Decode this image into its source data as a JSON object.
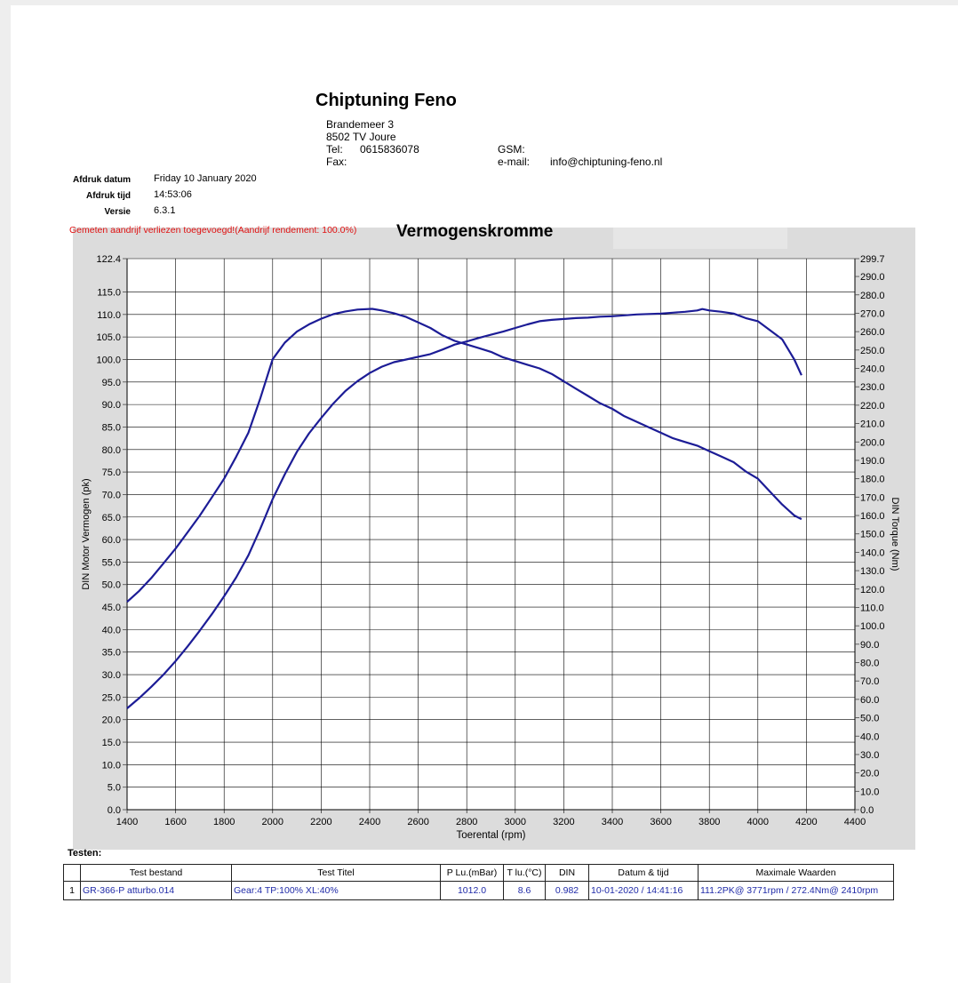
{
  "header": {
    "company": "Chiptuning Feno",
    "address_line1": "Brandemeer 3",
    "address_line2": "8502 TV Joure",
    "tel_label": "Tel:",
    "tel_value": "0615836078",
    "fax_label": "Fax:",
    "gsm_label": "GSM:",
    "email_label": "e-mail:",
    "email_value": "info@chiptuning-feno.nl"
  },
  "meta": {
    "date_label": "Afdruk datum",
    "date_value": "Friday 10 January 2020",
    "time_label": "Afdruk tijd",
    "time_value": "14:53:06",
    "version_label": "Versie",
    "version_value": "6.3.1"
  },
  "warning": "Gemeten aandrijf verliezen toegevoegd!(Aandrijf rendement: 100.0%)",
  "colors": {
    "curve": "#1c1c96",
    "plot_bg": "#ffffff",
    "frame_bg": "#dcdcdc",
    "grid": "#000000",
    "warning": "#e01010"
  },
  "chart_data": {
    "type": "line",
    "title": "Vermogenskromme",
    "xlabel": "Toerental (rpm)",
    "ylabel_left": "DIN Motor Vermogen (pk)",
    "ylabel_right": "DIN Torque (Nm)",
    "xlim": [
      1400,
      4400
    ],
    "ylim_left": [
      0,
      122.4
    ],
    "ylim_right": [
      0,
      299.7
    ],
    "x_ticks": [
      "1400",
      "1600",
      "1800",
      "2000",
      "2200",
      "2400",
      "2600",
      "2800",
      "3000",
      "3200",
      "3400",
      "3600",
      "3800",
      "4000",
      "4200",
      "4400"
    ],
    "y_left_ticks": [
      "0.0",
      "5.0",
      "10.0",
      "15.0",
      "20.0",
      "25.0",
      "30.0",
      "35.0",
      "40.0",
      "45.0",
      "50.0",
      "55.0",
      "60.0",
      "65.0",
      "70.0",
      "75.0",
      "80.0",
      "85.0",
      "90.0",
      "95.0",
      "100.0",
      "105.0",
      "110.0",
      "115.0",
      "122.4"
    ],
    "y_right_ticks": [
      "0.0",
      "10.0",
      "20.0",
      "30.0",
      "40.0",
      "50.0",
      "60.0",
      "70.0",
      "80.0",
      "90.0",
      "100.0",
      "110.0",
      "120.0",
      "130.0",
      "140.0",
      "150.0",
      "160.0",
      "170.0",
      "180.0",
      "190.0",
      "200.0",
      "210.0",
      "220.0",
      "230.0",
      "240.0",
      "250.0",
      "260.0",
      "270.0",
      "280.0",
      "290.0",
      "299.7"
    ],
    "grid": true,
    "series": [
      {
        "name": "Vermogen (pk)",
        "axis": "left",
        "x": [
          1400,
          1450,
          1500,
          1550,
          1600,
          1650,
          1700,
          1750,
          1800,
          1850,
          1900,
          1950,
          2000,
          2050,
          2100,
          2150,
          2200,
          2250,
          2300,
          2350,
          2400,
          2450,
          2500,
          2550,
          2600,
          2650,
          2700,
          2750,
          2800,
          2850,
          2900,
          2950,
          3000,
          3050,
          3100,
          3150,
          3200,
          3250,
          3300,
          3350,
          3400,
          3450,
          3500,
          3550,
          3600,
          3650,
          3700,
          3750,
          3771,
          3800,
          3850,
          3900,
          3950,
          4000,
          4050,
          4100,
          4150,
          4180
        ],
        "y": [
          22.5,
          24.8,
          27.3,
          30,
          33,
          36.3,
          39.8,
          43.5,
          47.4,
          51.6,
          56.5,
          62.5,
          69,
          74.5,
          79.5,
          83.6,
          87,
          90.2,
          93,
          95.2,
          97,
          98.4,
          99.4,
          100,
          100.6,
          101.2,
          102.2,
          103.3,
          104,
          104.8,
          105.5,
          106.2,
          107,
          107.8,
          108.5,
          108.8,
          109,
          109.2,
          109.3,
          109.5,
          109.6,
          109.8,
          110,
          110.1,
          110.2,
          110.4,
          110.6,
          110.9,
          111.2,
          110.9,
          110.6,
          110.2,
          109.2,
          108.5,
          106.5,
          104.5,
          100,
          96.5
        ]
      },
      {
        "name": "Torque (Nm)",
        "axis": "right",
        "x": [
          1400,
          1450,
          1500,
          1550,
          1600,
          1650,
          1700,
          1750,
          1800,
          1850,
          1900,
          1950,
          2000,
          2050,
          2100,
          2150,
          2200,
          2250,
          2300,
          2350,
          2410,
          2450,
          2500,
          2550,
          2600,
          2650,
          2700,
          2750,
          2800,
          2850,
          2900,
          2950,
          3000,
          3050,
          3100,
          3150,
          3200,
          3250,
          3300,
          3350,
          3400,
          3450,
          3500,
          3550,
          3600,
          3650,
          3700,
          3750,
          3800,
          3850,
          3900,
          3950,
          4000,
          4050,
          4100,
          4150,
          4180
        ],
        "y": [
          113,
          119,
          126,
          134,
          142,
          151,
          160,
          170,
          180,
          192,
          205,
          224,
          245,
          254,
          260,
          264,
          267,
          269.5,
          271,
          272,
          272.4,
          271.5,
          270,
          268,
          265,
          262,
          258,
          255,
          253,
          251,
          249,
          246,
          244,
          242,
          240,
          237,
          233,
          229,
          225,
          221,
          218,
          214,
          211,
          208,
          205,
          202,
          200,
          198,
          195,
          192,
          189,
          184,
          180,
          173,
          166,
          160,
          158
        ]
      }
    ]
  },
  "tests": {
    "label": "Testen:",
    "headers": [
      "",
      "Test bestand",
      "Test Titel",
      "P Lu.(mBar)",
      "T lu.(°C)",
      "DIN",
      "Datum & tijd",
      "Maximale Waarden"
    ],
    "row": {
      "index": "1",
      "file": "GR-366-P atturbo.014",
      "title": "Gear:4 TP:100% XL:40%",
      "pressure": "1012.0",
      "temp": "8.6",
      "din": "0.982",
      "datetime": "10-01-2020 / 14:41:16",
      "max": "111.2PK@ 3771rpm / 272.4Nm@ 2410rpm"
    }
  }
}
